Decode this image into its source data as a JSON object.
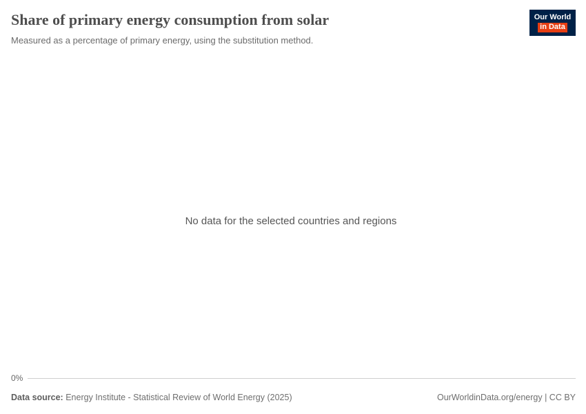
{
  "header": {
    "title": "Share of primary energy consumption from solar",
    "subtitle": "Measured as a percentage of primary energy, using the substitution method.",
    "logo": {
      "line1": "Our World",
      "line2": "in Data",
      "background_color": "#002147",
      "accent_color": "#e63e13"
    }
  },
  "chart_data": {
    "type": "line",
    "title": "Share of primary energy consumption from solar",
    "subtitle": "Measured as a percentage of primary energy, using the substitution method.",
    "series": [],
    "x": [],
    "no_data_message": "No data for the selected countries and regions",
    "y_axis_ticks": [
      "0%"
    ],
    "ylim": [
      0,
      0
    ],
    "xlabel": "",
    "ylabel": "",
    "grid": false,
    "legend": "none"
  },
  "footer": {
    "data_source_label": "Data source:",
    "data_source_text": "Energy Institute - Statistical Review of World Energy (2025)",
    "attribution": "OurWorldinData.org/energy | CC BY"
  },
  "colors": {
    "title_text": "#4e4e4e",
    "subtitle_text": "#6b6b6b",
    "no_data_text": "#555555",
    "axis_line": "#cfcfcf",
    "footer_text": "#6e6e6e"
  }
}
